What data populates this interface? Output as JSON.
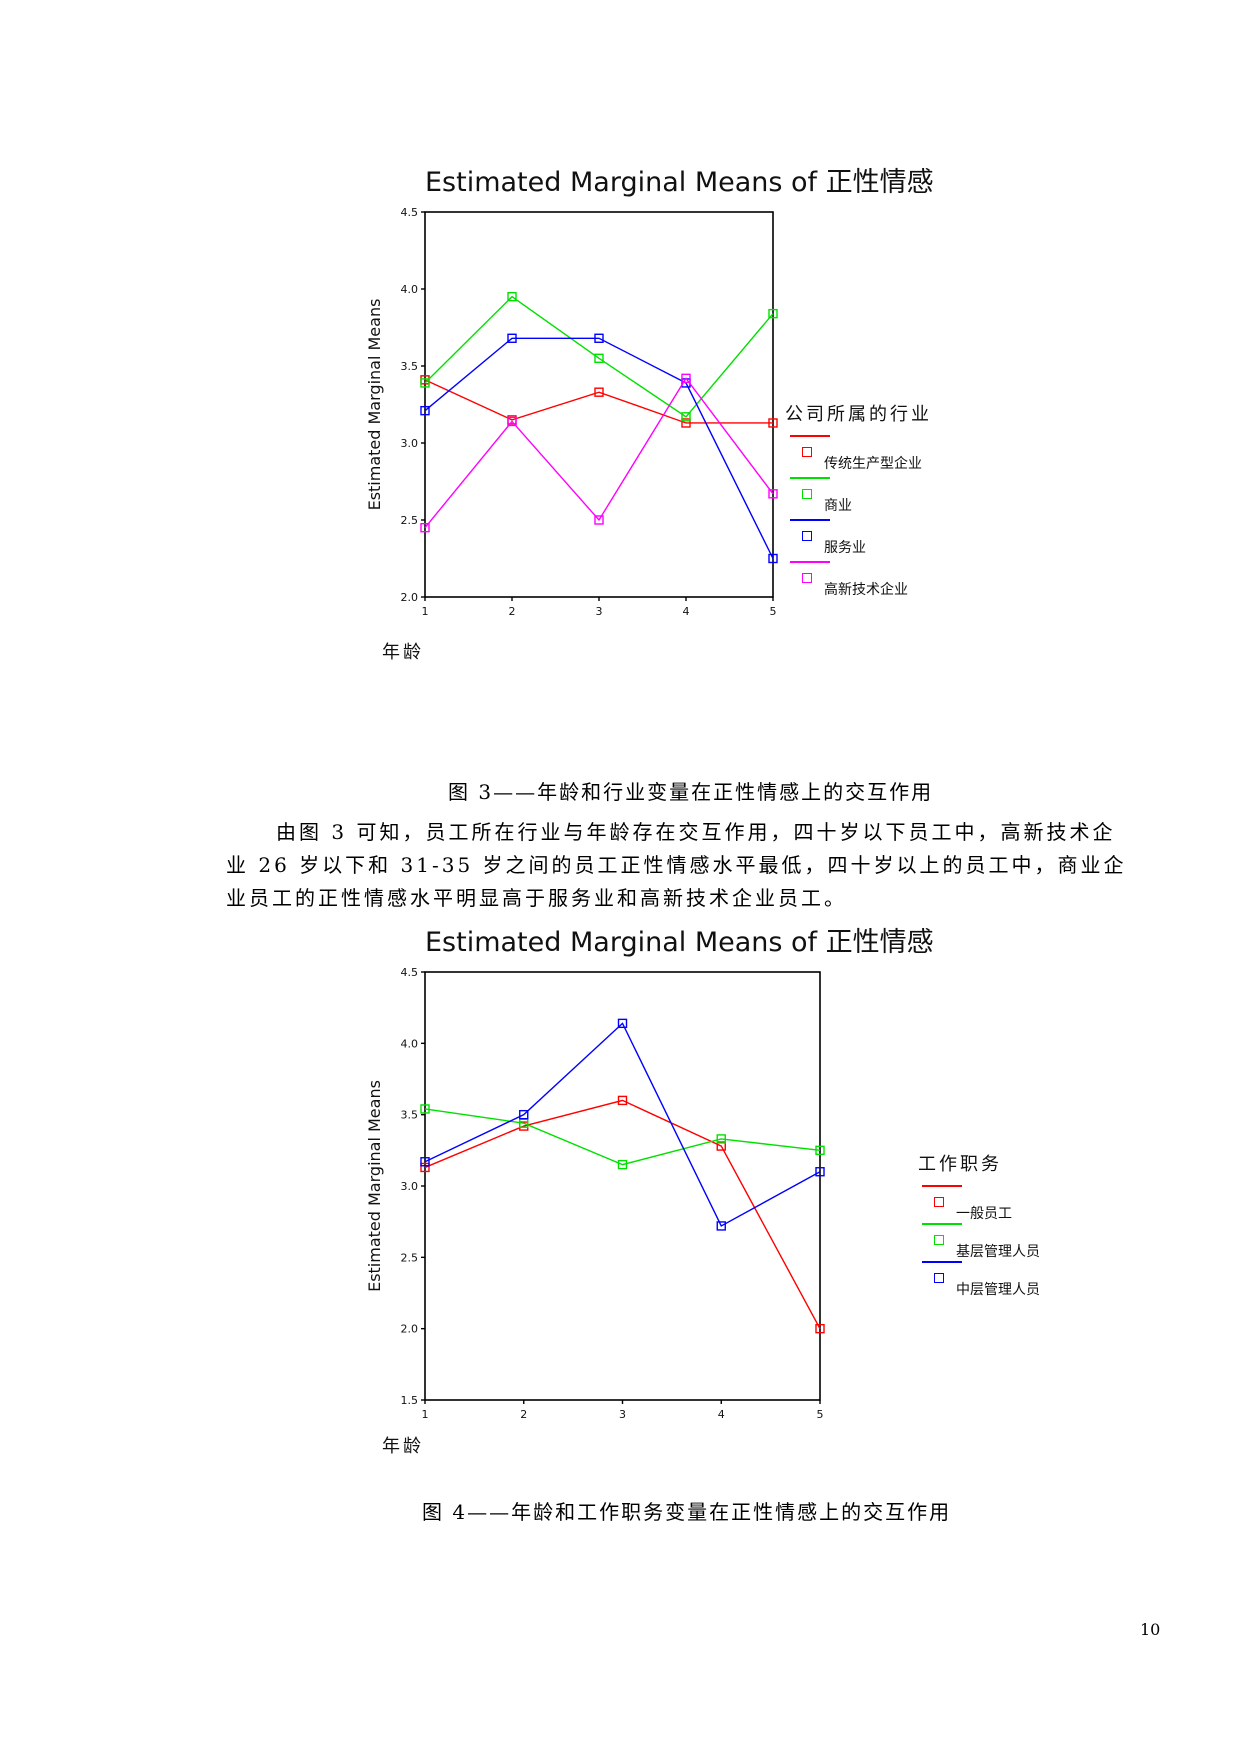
{
  "figures": [
    {
      "caption": "图 3——年龄和行业变量在正性情感上的交互作用",
      "legend_title": "公司所属的行业",
      "chart_data": {
        "type": "line",
        "title": "Estimated Marginal Means of 正性情感",
        "xlabel": "年龄",
        "ylabel": "Estimated Marginal Means",
        "categories": [
          "1",
          "2",
          "3",
          "4",
          "5"
        ],
        "ylim": [
          2.0,
          4.5
        ],
        "yticks": [
          2.0,
          2.5,
          3.0,
          3.5,
          4.0,
          4.5
        ],
        "ytick_labels": [
          "2.0",
          "2.5",
          "3.0",
          "3.5",
          "4.0",
          "4.5"
        ],
        "grid": false,
        "legend_position": "right",
        "marker": "open-square",
        "series": [
          {
            "name": "传统生产型企业",
            "color": "#ff0000",
            "values": [
              3.41,
              3.15,
              3.33,
              3.13,
              3.13
            ]
          },
          {
            "name": "商业",
            "color": "#00e000",
            "values": [
              3.39,
              3.95,
              3.55,
              3.17,
              3.84
            ]
          },
          {
            "name": "服务业",
            "color": "#0000ff",
            "values": [
              3.21,
              3.68,
              3.68,
              3.39,
              2.25
            ]
          },
          {
            "name": "高新技术企业",
            "color": "#ff00ff",
            "values": [
              2.45,
              3.14,
              2.5,
              3.42,
              2.67
            ]
          }
        ]
      }
    },
    {
      "caption": "图 4——年龄和工作职务变量在正性情感上的交互作用",
      "legend_title": "工作职务",
      "chart_data": {
        "type": "line",
        "title": "Estimated Marginal Means of 正性情感",
        "xlabel": "年龄",
        "ylabel": "Estimated Marginal Means",
        "categories": [
          "1",
          "2",
          "3",
          "4",
          "5"
        ],
        "ylim": [
          1.5,
          4.5
        ],
        "yticks": [
          1.5,
          2.0,
          2.5,
          3.0,
          3.5,
          4.0,
          4.5
        ],
        "ytick_labels": [
          "1.5",
          "2.0",
          "2.5",
          "3.0",
          "3.5",
          "4.0",
          "4.5"
        ],
        "grid": false,
        "legend_position": "right",
        "marker": "open-square",
        "series": [
          {
            "name": "一般员工",
            "color": "#ff0000",
            "values": [
              3.13,
              3.42,
              3.6,
              3.28,
              2.0
            ]
          },
          {
            "name": "基层管理人员",
            "color": "#00e000",
            "values": [
              3.54,
              3.44,
              3.15,
              3.33,
              3.25
            ]
          },
          {
            "name": "中层管理人员",
            "color": "#0000ff",
            "values": [
              3.17,
              3.5,
              4.14,
              2.72,
              3.1
            ]
          }
        ]
      }
    }
  ],
  "paragraph": [
    "由图 3 可知，员工所在行业与年龄存在交互作用，四十岁以下员工中，高新技术企",
    "业 26 岁以下和 31-35 岁之间的员工正性情感水平最低，四十岁以上的员工中，商业企",
    "业员工的正性情感水平明显高于服务业和高新技术企业员工。"
  ],
  "page_number": "10"
}
